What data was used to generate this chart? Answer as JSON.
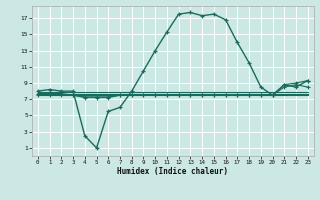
{
  "xlabel": "Humidex (Indice chaleur)",
  "bg_color": "#cce8e4",
  "grid_color": "#ffffff",
  "line_color": "#1a6b5e",
  "xlim": [
    -0.5,
    23.5
  ],
  "ylim": [
    0.0,
    18.5
  ],
  "xticks": [
    0,
    1,
    2,
    3,
    4,
    5,
    6,
    7,
    8,
    9,
    10,
    11,
    12,
    13,
    14,
    15,
    16,
    17,
    18,
    19,
    20,
    21,
    22,
    23
  ],
  "yticks": [
    1,
    3,
    5,
    7,
    9,
    11,
    13,
    15,
    17
  ],
  "main_curve": [
    8.0,
    8.2,
    8.0,
    8.0,
    2.5,
    1.0,
    5.5,
    6.0,
    8.0,
    10.5,
    13.0,
    15.3,
    17.5,
    17.7,
    17.3,
    17.5,
    16.8,
    14.0,
    11.5,
    8.5,
    7.5,
    8.8,
    8.5,
    9.3
  ],
  "line_a": [
    7.5,
    7.5,
    7.5,
    7.5,
    7.2,
    7.2,
    7.2,
    7.5,
    7.5,
    7.5,
    7.5,
    7.5,
    7.5,
    7.5,
    7.5,
    7.5,
    7.5,
    7.5,
    7.5,
    7.5,
    7.5,
    8.5,
    8.8,
    8.5
  ],
  "line_b": [
    7.7,
    7.7,
    7.7,
    7.5,
    7.3,
    7.3,
    7.3,
    7.5,
    7.5,
    7.5,
    7.5,
    7.5,
    7.5,
    7.5,
    7.5,
    7.5,
    7.5,
    7.5,
    7.5,
    7.5,
    7.5,
    8.8,
    9.0,
    9.3
  ],
  "line_c": [
    7.5,
    7.5,
    7.5,
    7.5,
    7.5,
    7.5,
    7.5,
    7.5,
    7.5,
    7.5,
    7.5,
    7.5,
    7.5,
    7.5,
    7.5,
    7.5,
    7.5,
    7.5,
    7.5,
    7.5,
    7.5,
    7.5,
    7.5,
    7.5
  ],
  "line_d": [
    7.7,
    7.7,
    7.7,
    7.7,
    7.7,
    7.7,
    7.7,
    7.7,
    7.7,
    7.7,
    7.7,
    7.7,
    7.7,
    7.7,
    7.7,
    7.7,
    7.7,
    7.7,
    7.7,
    7.7,
    7.7,
    7.7,
    7.7,
    7.7
  ],
  "line_e": [
    7.9,
    7.9,
    7.9,
    7.9,
    7.9,
    7.9,
    7.9,
    7.9,
    7.9,
    7.9,
    7.9,
    7.9,
    7.9,
    7.9,
    7.9,
    7.9,
    7.9,
    7.9,
    7.9,
    7.9,
    7.9,
    7.9,
    7.9,
    7.9
  ]
}
